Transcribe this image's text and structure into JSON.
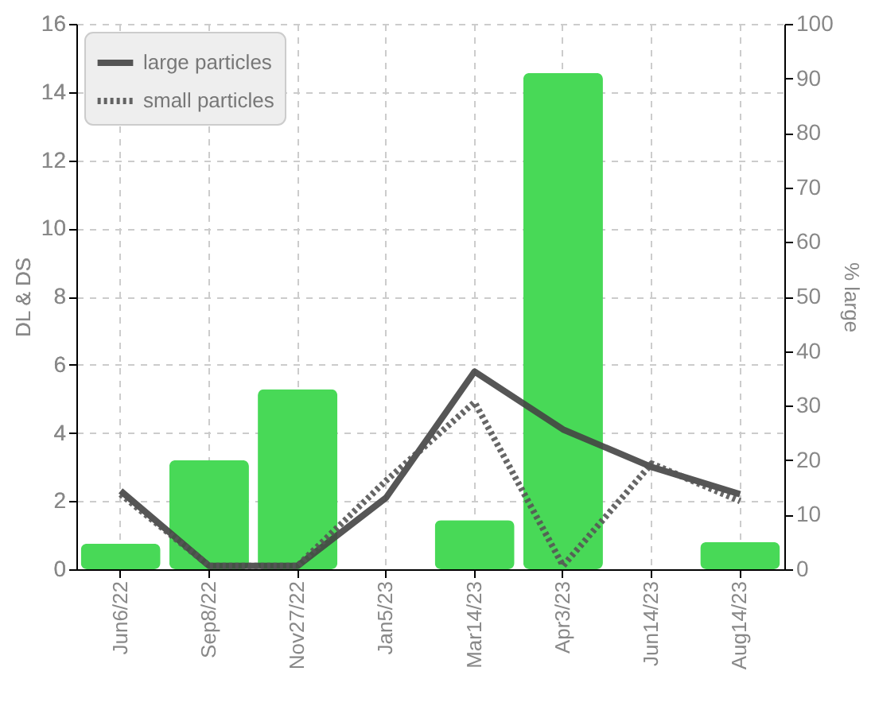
{
  "chart_data": {
    "type": "bar",
    "ylabel": "DL & DS",
    "y2label": "% large",
    "categories": [
      "Jun6/22",
      "Sep8/22",
      "Nov27/22",
      "Jan5/23",
      "Mar14/23",
      "Apr3/23",
      "Jun14/23",
      "Aug14/23"
    ],
    "series": [
      {
        "axis": "y2",
        "color": "#48d957",
        "values": [
          4.7,
          20,
          33,
          0,
          9,
          91,
          0,
          5
        ]
      },
      {
        "type": "line",
        "name": "large particles",
        "color": "#444444",
        "line_style": "solid",
        "values": [
          2.3,
          0.1,
          0.1,
          2.1,
          5.8,
          4.1,
          3.0,
          2.2
        ]
      },
      {
        "type": "line",
        "name": "small particles",
        "color": "#555555",
        "line_style": "dotted",
        "values": [
          2.2,
          0.1,
          0.1,
          2.6,
          4.9,
          0.1,
          3.1,
          2.0
        ]
      }
    ],
    "ylim": [
      0,
      16
    ],
    "yticks": [
      0,
      2,
      4,
      6,
      8,
      10,
      12,
      14,
      16
    ],
    "y2lim": [
      0,
      100
    ],
    "y2ticks": [
      0,
      10,
      20,
      30,
      40,
      50,
      60,
      70,
      80,
      90,
      100
    ],
    "grid": true,
    "legend": "top left"
  }
}
